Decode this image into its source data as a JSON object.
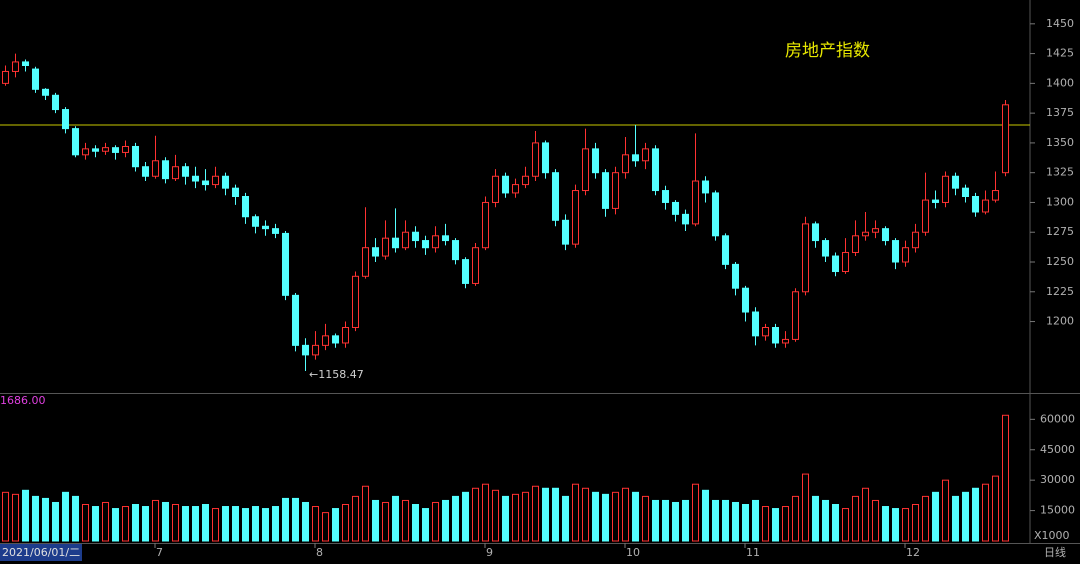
{
  "chart_data": {
    "type": "candlestick",
    "title": "房地产指数",
    "top_left_label": "1686.00",
    "volume_unit_label": "X1000",
    "date_label": "2021/06/01/二",
    "period_label": "日线",
    "annotation": {
      "label": "←1158.47",
      "index": 30
    },
    "hline": 1365,
    "up_color": "#ff3232",
    "down_color": "#54ffff",
    "hline_color": "#c8c800",
    "ylim": [
      1140,
      1470
    ],
    "yticks": [
      1200,
      1225,
      1250,
      1275,
      1300,
      1325,
      1350,
      1375,
      1400,
      1425,
      1450
    ],
    "volume_ylim": [
      0,
      72000
    ],
    "volume_yticks": [
      15000,
      30000,
      45000,
      60000
    ],
    "x_labels": [
      {
        "index": 15,
        "label": "7"
      },
      {
        "index": 31,
        "label": "8"
      },
      {
        "index": 48,
        "label": "9"
      },
      {
        "index": 62,
        "label": "10"
      },
      {
        "index": 74,
        "label": "11"
      },
      {
        "index": 90,
        "label": "12"
      }
    ],
    "open": [
      1400,
      1410,
      1418,
      1412,
      1395,
      1390,
      1378,
      1362,
      1340,
      1345,
      1343,
      1346,
      1342,
      1347,
      1330,
      1322,
      1335,
      1320,
      1330,
      1322,
      1318,
      1315,
      1322,
      1312,
      1305,
      1288,
      1280,
      1278,
      1274,
      1222,
      1180,
      1172,
      1180,
      1188,
      1182,
      1195,
      1238,
      1262,
      1255,
      1270,
      1262,
      1275,
      1268,
      1262,
      1272,
      1268,
      1252,
      1232,
      1262,
      1300,
      1322,
      1308,
      1315,
      1322,
      1350,
      1325,
      1285,
      1265,
      1310,
      1345,
      1325,
      1295,
      1325,
      1340,
      1335,
      1345,
      1310,
      1300,
      1290,
      1282,
      1318,
      1308,
      1272,
      1248,
      1228,
      1208,
      1188,
      1195,
      1182,
      1185,
      1225,
      1282,
      1268,
      1255,
      1242,
      1258,
      1272,
      1275,
      1278,
      1268,
      1250,
      1262,
      1275,
      1302,
      1300,
      1322,
      1312,
      1305,
      1292,
      1302,
      1325
    ],
    "high": [
      1415,
      1425,
      1420,
      1414,
      1396,
      1392,
      1380,
      1364,
      1350,
      1348,
      1350,
      1348,
      1352,
      1350,
      1334,
      1356,
      1338,
      1340,
      1333,
      1330,
      1328,
      1330,
      1325,
      1315,
      1308,
      1290,
      1285,
      1282,
      1276,
      1224,
      1186,
      1192,
      1198,
      1190,
      1200,
      1242,
      1296,
      1270,
      1285,
      1295,
      1285,
      1280,
      1272,
      1280,
      1282,
      1270,
      1254,
      1266,
      1305,
      1328,
      1325,
      1320,
      1330,
      1360,
      1352,
      1328,
      1290,
      1315,
      1362,
      1350,
      1328,
      1330,
      1355,
      1365,
      1350,
      1348,
      1314,
      1302,
      1294,
      1358,
      1322,
      1310,
      1274,
      1250,
      1230,
      1212,
      1198,
      1198,
      1192,
      1228,
      1288,
      1284,
      1270,
      1258,
      1270,
      1285,
      1292,
      1285,
      1280,
      1270,
      1268,
      1282,
      1325,
      1310,
      1326,
      1325,
      1315,
      1308,
      1310,
      1326,
      1386
    ],
    "low": [
      1398,
      1405,
      1410,
      1392,
      1386,
      1375,
      1358,
      1338,
      1336,
      1338,
      1340,
      1336,
      1338,
      1326,
      1318,
      1320,
      1316,
      1318,
      1315,
      1312,
      1310,
      1312,
      1306,
      1298,
      1282,
      1274,
      1272,
      1270,
      1218,
      1175,
      1158.47,
      1168,
      1176,
      1178,
      1178,
      1192,
      1236,
      1250,
      1252,
      1258,
      1260,
      1262,
      1256,
      1258,
      1264,
      1248,
      1228,
      1230,
      1260,
      1296,
      1304,
      1304,
      1312,
      1318,
      1320,
      1280,
      1260,
      1262,
      1306,
      1320,
      1288,
      1290,
      1320,
      1330,
      1328,
      1306,
      1294,
      1284,
      1276,
      1280,
      1300,
      1268,
      1244,
      1222,
      1200,
      1180,
      1184,
      1178,
      1178,
      1183,
      1222,
      1262,
      1250,
      1238,
      1240,
      1255,
      1268,
      1270,
      1264,
      1244,
      1246,
      1258,
      1272,
      1295,
      1296,
      1306,
      1300,
      1288,
      1290,
      1300,
      1322
    ],
    "close": [
      1410,
      1418,
      1415,
      1395,
      1390,
      1378,
      1362,
      1340,
      1345,
      1343,
      1346,
      1342,
      1347,
      1330,
      1322,
      1335,
      1320,
      1330,
      1322,
      1318,
      1315,
      1322,
      1312,
      1305,
      1288,
      1280,
      1278,
      1274,
      1222,
      1180,
      1172,
      1180,
      1188,
      1182,
      1195,
      1238,
      1262,
      1255,
      1270,
      1262,
      1275,
      1268,
      1262,
      1272,
      1268,
      1252,
      1232,
      1262,
      1300,
      1322,
      1308,
      1315,
      1322,
      1350,
      1325,
      1285,
      1265,
      1310,
      1345,
      1325,
      1295,
      1325,
      1340,
      1335,
      1345,
      1310,
      1300,
      1290,
      1282,
      1318,
      1308,
      1272,
      1248,
      1228,
      1208,
      1188,
      1195,
      1182,
      1185,
      1225,
      1282,
      1268,
      1255,
      1242,
      1258,
      1272,
      1275,
      1278,
      1268,
      1250,
      1262,
      1275,
      1302,
      1300,
      1322,
      1312,
      1305,
      1292,
      1302,
      1310,
      1382
    ],
    "volume": [
      24000,
      23000,
      25000,
      22000,
      21000,
      19000,
      24000,
      22000,
      18000,
      17000,
      19000,
      16000,
      17000,
      18000,
      17000,
      20000,
      19000,
      18000,
      17000,
      17000,
      18000,
      16000,
      17000,
      17000,
      16000,
      17000,
      16000,
      17000,
      21000,
      21000,
      19000,
      17000,
      14000,
      16000,
      18000,
      22000,
      27000,
      20000,
      19000,
      22000,
      20000,
      18000,
      16000,
      19000,
      20000,
      22000,
      24000,
      26000,
      28000,
      25000,
      22000,
      23000,
      24000,
      27000,
      26000,
      26000,
      22000,
      28000,
      26000,
      24000,
      23000,
      24000,
      26000,
      24000,
      22000,
      20000,
      20000,
      19000,
      20000,
      28000,
      25000,
      20000,
      20000,
      19000,
      18000,
      20000,
      17000,
      16000,
      17000,
      22000,
      33000,
      22000,
      20000,
      18000,
      16000,
      22000,
      26000,
      20000,
      17000,
      16000,
      16000,
      18000,
      22000,
      24000,
      30000,
      22000,
      24000,
      26000,
      28000,
      32000,
      62000
    ]
  }
}
